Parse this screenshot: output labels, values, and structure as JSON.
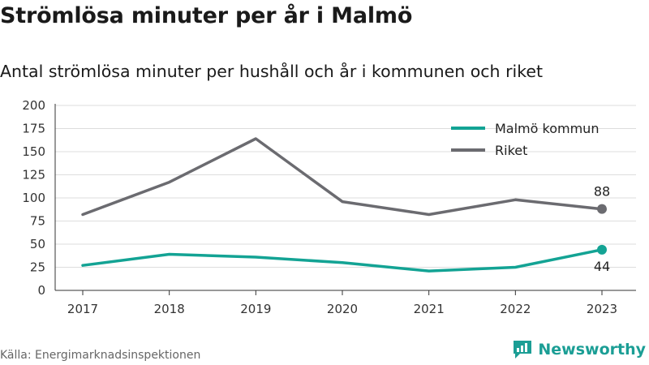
{
  "header": {
    "title": "Strömlösa minuter per år i Malmö",
    "subtitle": "Antal strömlösa minuter per hushåll och år i kommunen och riket"
  },
  "footer": {
    "source": "Källa: Energimarknadsinspektionen",
    "brand": "Newsworthy",
    "brand_icon": "newsworthy-logo-icon"
  },
  "colors": {
    "malmo": "#13a394",
    "riket": "#6b6b70",
    "grid": "#dddddd",
    "brand": "#1b9e95"
  },
  "chart_data": {
    "type": "line",
    "title": "Strömlösa minuter per år i Malmö",
    "subtitle": "Antal strömlösa minuter per hushåll och år i kommunen och riket",
    "x": [
      "2017",
      "2018",
      "2019",
      "2020",
      "2021",
      "2022",
      "2023"
    ],
    "series": [
      {
        "name": "Malmö kommun",
        "values": [
          27,
          39,
          36,
          30,
          21,
          25,
          44
        ],
        "color": "#13a394"
      },
      {
        "name": "Riket",
        "values": [
          82,
          117,
          164,
          96,
          82,
          98,
          88
        ],
        "color": "#6b6b70"
      }
    ],
    "yticks": [
      0,
      25,
      50,
      75,
      100,
      125,
      150,
      175,
      200
    ],
    "ylim": [
      0,
      200
    ],
    "grid": true,
    "legend": "top-right",
    "end_labels": [
      {
        "series": "Riket",
        "text": "88",
        "position": "above"
      },
      {
        "series": "Malmö kommun",
        "text": "44",
        "position": "below"
      }
    ]
  }
}
